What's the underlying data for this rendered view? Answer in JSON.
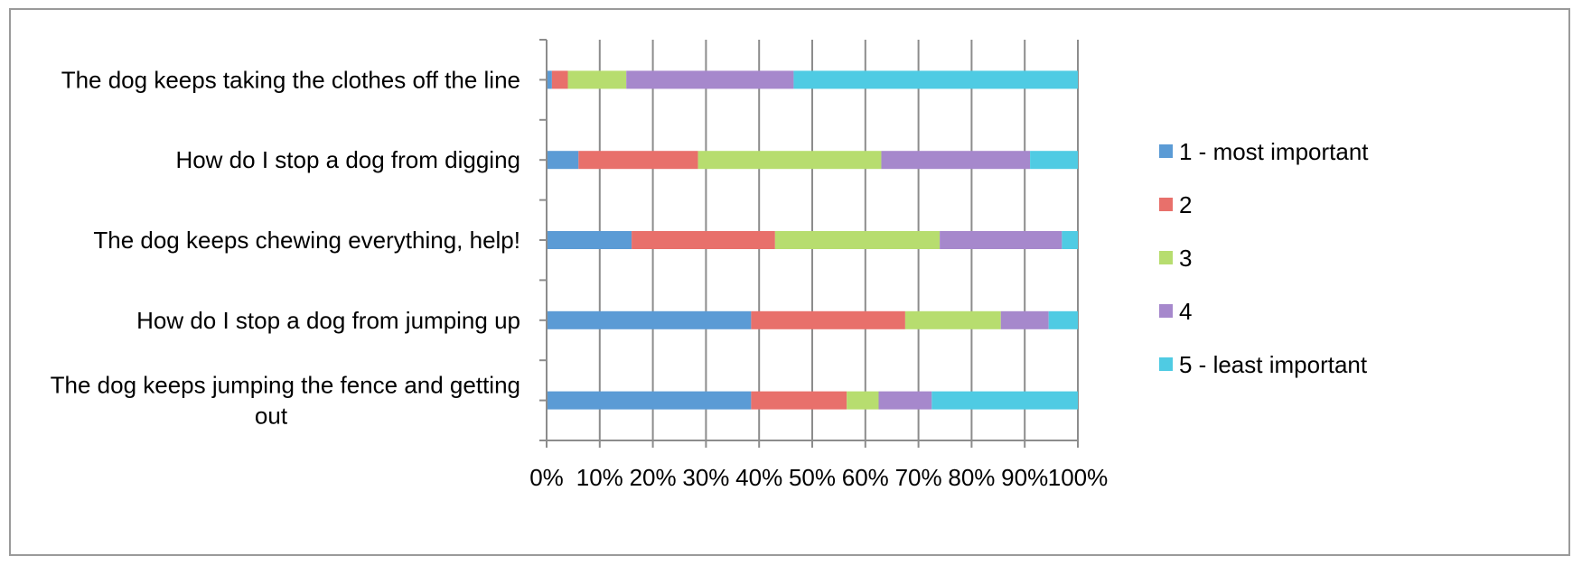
{
  "chart_data": {
    "type": "bar",
    "orientation": "horizontal",
    "stacked": "percent",
    "categories": [
      "The dog keeps jumping the fence and getting out",
      "How do I stop a dog from jumping up",
      "The dog keeps chewing everything, help!",
      "How do I stop a dog from digging",
      "The dog keeps taking the clothes off the line"
    ],
    "series": [
      {
        "name": "1 - most important",
        "color": "#5b9bd5",
        "values": [
          38.5,
          38.5,
          16,
          6,
          1
        ]
      },
      {
        "name": "2",
        "color": "#e8706b",
        "values": [
          18,
          29,
          27,
          22.5,
          3
        ]
      },
      {
        "name": "3",
        "color": "#b7dd6f",
        "values": [
          6,
          18,
          31,
          34.5,
          11
        ]
      },
      {
        "name": "4",
        "color": "#a688cc",
        "values": [
          10,
          9,
          23,
          28,
          31.5
        ]
      },
      {
        "name": "5 - least important",
        "color": "#4fcbe3",
        "values": [
          27.5,
          5.5,
          3,
          9,
          53.5
        ]
      }
    ],
    "xlim": [
      0,
      100
    ],
    "x_ticks": [
      "0%",
      "10%",
      "20%",
      "30%",
      "40%",
      "50%",
      "60%",
      "70%",
      "80%",
      "90%",
      "100%"
    ],
    "grid": "vertical major gridlines",
    "legend_position": "right",
    "title": "",
    "xlabel": "",
    "ylabel": ""
  }
}
